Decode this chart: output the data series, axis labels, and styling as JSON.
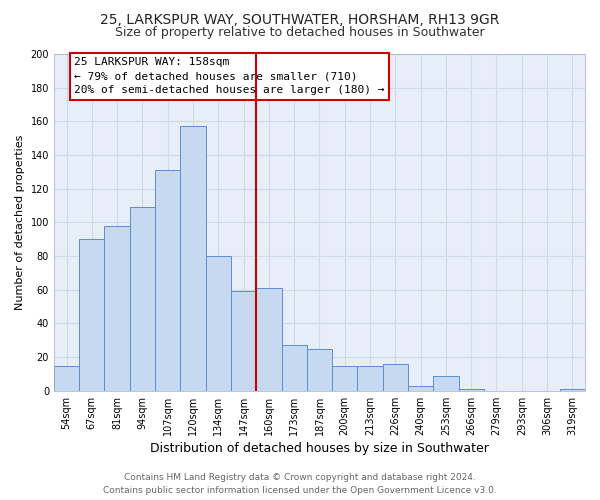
{
  "title": "25, LARKSPUR WAY, SOUTHWATER, HORSHAM, RH13 9GR",
  "subtitle": "Size of property relative to detached houses in Southwater",
  "xlabel": "Distribution of detached houses by size in Southwater",
  "ylabel": "Number of detached properties",
  "bar_labels": [
    "54sqm",
    "67sqm",
    "81sqm",
    "94sqm",
    "107sqm",
    "120sqm",
    "134sqm",
    "147sqm",
    "160sqm",
    "173sqm",
    "187sqm",
    "200sqm",
    "213sqm",
    "226sqm",
    "240sqm",
    "253sqm",
    "266sqm",
    "279sqm",
    "293sqm",
    "306sqm",
    "319sqm"
  ],
  "bar_heights": [
    15,
    90,
    98,
    109,
    131,
    157,
    80,
    59,
    61,
    27,
    25,
    15,
    15,
    16,
    3,
    9,
    1,
    0,
    0,
    0,
    1
  ],
  "bar_color": "#c6d9f0",
  "bar_edge_color": "#5b8fd4",
  "vline_color": "#cc0000",
  "ylim": [
    0,
    200
  ],
  "yticks": [
    0,
    20,
    40,
    60,
    80,
    100,
    120,
    140,
    160,
    180,
    200
  ],
  "annotation_title": "25 LARKSPUR WAY: 158sqm",
  "annotation_line1": "← 79% of detached houses are smaller (710)",
  "annotation_line2": "20% of semi-detached houses are larger (180) →",
  "annotation_box_color": "#ffffff",
  "annotation_box_edge": "#cc0000",
  "footer1": "Contains HM Land Registry data © Crown copyright and database right 2024.",
  "footer2": "Contains public sector information licensed under the Open Government Licence v3.0.",
  "grid_color": "#d0d9e8",
  "ax_bg_color": "#e8eef8",
  "title_fontsize": 10,
  "subtitle_fontsize": 9,
  "xlabel_fontsize": 9,
  "ylabel_fontsize": 8,
  "tick_fontsize": 7,
  "annotation_fontsize": 8,
  "footer_fontsize": 6.5
}
